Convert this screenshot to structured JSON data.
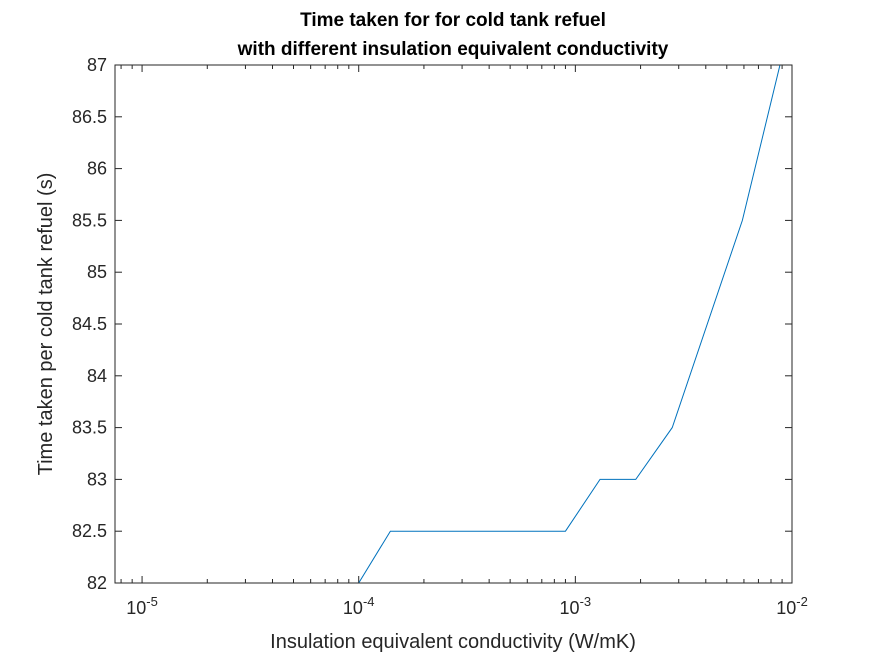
{
  "chart_data": {
    "type": "line",
    "title_lines": [
      "Time taken for for cold tank refuel",
      "with different insulation equivalent conductivity"
    ],
    "xlabel": "Insulation equivalent conductivity (W/mK)",
    "ylabel": "Time taken per cold tank refuel (s)",
    "x_scale": "log",
    "xlim": [
      7.5e-06,
      0.01
    ],
    "ylim": [
      82,
      87
    ],
    "x_ticks": [
      {
        "value": 1e-05,
        "base": "10",
        "exponent": "-5"
      },
      {
        "value": 0.0001,
        "base": "10",
        "exponent": "-4"
      },
      {
        "value": 0.001,
        "base": "10",
        "exponent": "-3"
      },
      {
        "value": 0.01,
        "base": "10",
        "exponent": "-2"
      }
    ],
    "y_ticks": [
      "82",
      "82.5",
      "83",
      "83.5",
      "84",
      "84.5",
      "85",
      "85.5",
      "86",
      "86.5",
      "87"
    ],
    "grid": false,
    "series": [
      {
        "color": "#0072BD",
        "x": [
          7.5e-06,
          0.0001,
          0.00014,
          0.0009,
          0.0013,
          0.0019,
          0.0028,
          0.0059,
          0.0088
        ],
        "y": [
          82,
          82,
          82.5,
          82.5,
          83,
          83,
          83.5,
          85.5,
          87
        ]
      }
    ]
  }
}
